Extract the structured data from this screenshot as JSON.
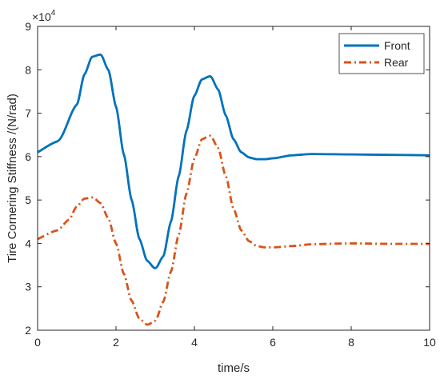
{
  "chart_data": {
    "type": "line",
    "xlabel": "time/s",
    "ylabel": "Tire Cornering Stiffness /(N/rad)",
    "xlim": [
      0,
      10
    ],
    "ylim": [
      20000,
      90000
    ],
    "x_ticks": [
      0,
      2,
      4,
      6,
      8,
      10
    ],
    "y_ticks": [
      2,
      3,
      4,
      5,
      6,
      7,
      8,
      9
    ],
    "y_exponent_label": "×10",
    "y_exponent_power": "4",
    "grid": false,
    "legend_position": "top-right",
    "series": [
      {
        "name": "Front",
        "color": "#0072BD",
        "line_style": "solid",
        "x": [
          0,
          0.5,
          1.0,
          1.2,
          1.4,
          1.6,
          1.8,
          2.0,
          2.2,
          2.4,
          2.6,
          2.8,
          3.0,
          3.2,
          3.4,
          3.6,
          3.8,
          4.0,
          4.2,
          4.4,
          4.6,
          4.8,
          5.0,
          5.2,
          5.4,
          5.6,
          5.8,
          6.0,
          6.5,
          7.0,
          8.0,
          9.0,
          10.0
        ],
        "y": [
          61000,
          63500,
          72000,
          79000,
          83000,
          83500,
          80000,
          71500,
          60500,
          50000,
          41000,
          36000,
          34300,
          37000,
          45000,
          55500,
          66000,
          74000,
          77800,
          78500,
          75500,
          69500,
          64000,
          61000,
          59800,
          59400,
          59400,
          59600,
          60300,
          60600,
          60500,
          60400,
          60300
        ]
      },
      {
        "name": "Rear",
        "color": "#D95319",
        "line_style": "dash-dot",
        "x": [
          0,
          0.5,
          0.8,
          1.0,
          1.2,
          1.4,
          1.6,
          1.8,
          2.0,
          2.2,
          2.4,
          2.6,
          2.8,
          3.0,
          3.2,
          3.4,
          3.6,
          3.8,
          4.0,
          4.2,
          4.4,
          4.6,
          4.8,
          5.0,
          5.2,
          5.4,
          5.6,
          5.8,
          6.0,
          6.5,
          7.0,
          8.0,
          9.0,
          10.0
        ],
        "y": [
          41000,
          43000,
          45500,
          48500,
          50300,
          50600,
          49300,
          45800,
          40000,
          33000,
          26800,
          22700,
          21300,
          22200,
          26500,
          33500,
          42000,
          51500,
          59500,
          64000,
          64800,
          62000,
          55500,
          48000,
          43000,
          40500,
          39400,
          39100,
          39100,
          39400,
          39800,
          40000,
          39900,
          39900
        ]
      }
    ]
  }
}
